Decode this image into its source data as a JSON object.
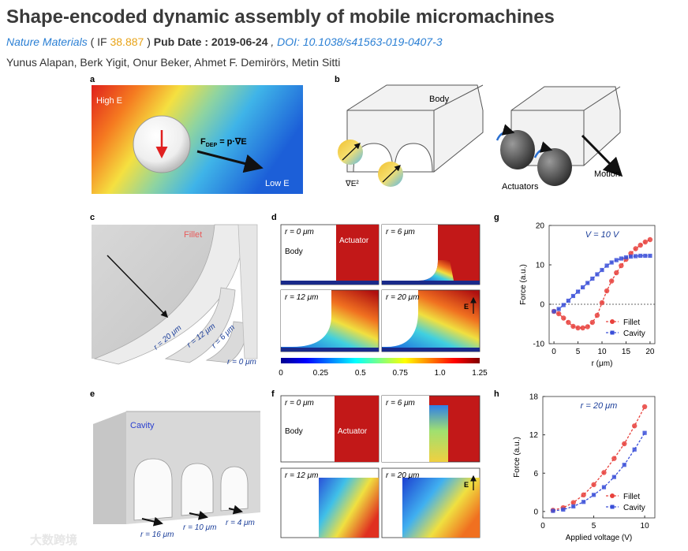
{
  "header": {
    "title": "Shape-encoded dynamic assembly of mobile micromachines",
    "journal": "Nature Materials",
    "if_open": " ( IF ",
    "if_value": "38.887",
    "if_close": " ) ",
    "pubdate_label": "Pub Date : 2019-06-24",
    "sep": " , ",
    "doi_label": "DOI: 10.1038/s41563-019-0407-3",
    "authors": "Yunus Alapan, Berk Yigit, Onur Beker, Ahmet F. Demirörs, Metin Sitti"
  },
  "panels": {
    "a": {
      "letter": "a",
      "high": "High E",
      "low": "Low E",
      "force_main": "F",
      "force_sub": "DEP",
      "force_rest": " = p·∇E"
    },
    "b": {
      "letter": "b",
      "body": "Body",
      "grad": "∇E²",
      "actuators": "Actuators",
      "motion": "Motion"
    },
    "c": {
      "letter": "c",
      "fillet": "Fillet",
      "r20": "r = 20 μm",
      "r12": "r = 12 μm",
      "r6": "r = 6 μm",
      "r0": "r = 0 μm"
    },
    "d": {
      "letter": "d",
      "labels": [
        "r = 0 μm",
        "r = 6 μm",
        "r = 12 μm",
        "r = 20 μm"
      ],
      "body": "Body",
      "actuator": "Actuator",
      "e_label": "E",
      "colorbar_ticks": [
        "0",
        "0.25",
        "0.5",
        "0.75",
        "1.0",
        "1.25"
      ]
    },
    "e": {
      "letter": "e",
      "cavity": "Cavity",
      "r16": "r = 16 μm",
      "r10": "r = 10 μm",
      "r4": "r = 4 μm"
    },
    "f": {
      "letter": "f",
      "labels": [
        "r = 0 μm",
        "r = 6 μm",
        "r = 12 μm",
        "r = 20 μm"
      ],
      "body": "Body",
      "actuator": "Actuator",
      "e_label": "E"
    }
  },
  "watermark": "大数跨境",
  "chart_data": [
    {
      "panel": "g",
      "type": "line",
      "annotation": "V = 10 V",
      "xlabel": "r (μm)",
      "ylabel": "Force (a.u.)",
      "xlim": [
        -1,
        21
      ],
      "ylim": [
        -10,
        20
      ],
      "xticks": [
        0,
        5,
        10,
        15,
        20
      ],
      "yticks": [
        -10,
        0,
        10,
        20
      ],
      "x": [
        0,
        1,
        2,
        3,
        4,
        5,
        6,
        7,
        8,
        9,
        10,
        11,
        12,
        13,
        14,
        15,
        16,
        17,
        18,
        19,
        20
      ],
      "series": [
        {
          "name": "Fillet",
          "color": "#e8413c",
          "marker": "circle",
          "values": [
            -1.8,
            -2.4,
            -3.5,
            -4.6,
            -5.6,
            -6,
            -6,
            -5.7,
            -4.6,
            -2.8,
            0.4,
            3.4,
            5.9,
            8,
            9.8,
            11.4,
            12.9,
            14.1,
            15,
            15.8,
            16.4
          ]
        },
        {
          "name": "Cavity",
          "color": "#3a4fd8",
          "marker": "square",
          "values": [
            -1.8,
            -1.2,
            -0.2,
            0.9,
            2.1,
            3.2,
            4.3,
            5.4,
            6.5,
            7.6,
            8.7,
            9.8,
            10.6,
            11.2,
            11.6,
            11.9,
            12.1,
            12.2,
            12.3,
            12.3,
            12.3
          ]
        }
      ],
      "legend": "bottom-right"
    },
    {
      "panel": "h",
      "type": "line",
      "annotation": "r = 20 μm",
      "xlabel": "Applied voltage (V)",
      "ylabel": "Force (a.u.)",
      "xlim": [
        0,
        11
      ],
      "ylim": [
        -1,
        18
      ],
      "xticks": [
        0,
        5,
        10
      ],
      "yticks": [
        0,
        6,
        12,
        18
      ],
      "x": [
        1,
        2,
        3,
        4,
        5,
        6,
        7,
        8,
        9,
        10
      ],
      "series": [
        {
          "name": "Fillet",
          "color": "#e8413c",
          "marker": "circle",
          "values": [
            0.2,
            0.6,
            1.4,
            2.6,
            4.2,
            6.1,
            8.3,
            10.6,
            13.4,
            16.4
          ]
        },
        {
          "name": "Cavity",
          "color": "#3a4fd8",
          "marker": "square",
          "values": [
            0.1,
            0.3,
            0.8,
            1.5,
            2.6,
            3.8,
            5.4,
            7.3,
            9.7,
            12.3
          ]
        }
      ],
      "legend": "bottom-right"
    }
  ]
}
